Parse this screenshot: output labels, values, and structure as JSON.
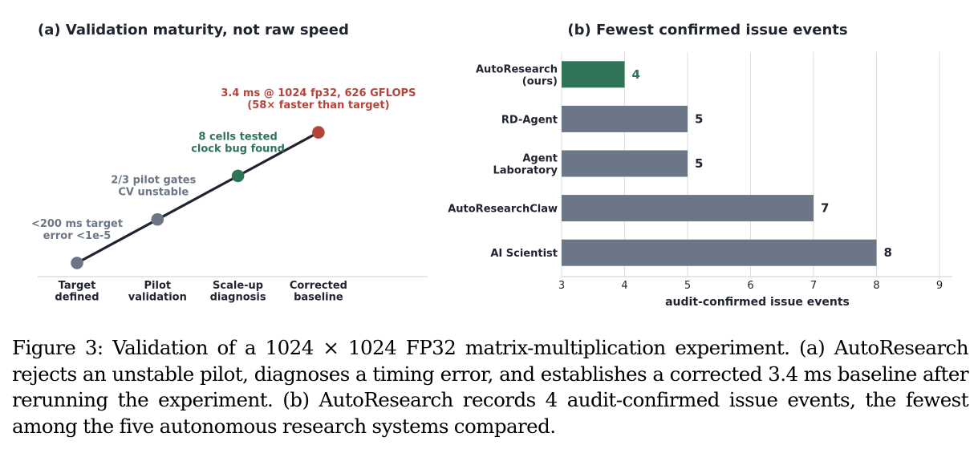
{
  "chart_data": [
    {
      "type": "line",
      "title": "(a) Validation maturity, not raw speed",
      "categories": [
        "Target\ndefined",
        "Pilot\nvalidation",
        "Scale-up\ndiagnosis",
        "Corrected\nbaseline"
      ],
      "y": [
        0,
        1,
        2,
        3
      ],
      "grid": false,
      "colors": {
        "line": "#1f2430",
        "axis": "#cccccc"
      },
      "points": [
        {
          "annotation": "<200 ms target\nerror <1e-5",
          "color": "#6b7686"
        },
        {
          "annotation": "2/3 pilot gates\nCV unstable",
          "color": "#6b7686"
        },
        {
          "annotation": "8 cells tested\nclock bug found",
          "color": "#2f7358"
        },
        {
          "annotation": "3.4 ms @ 1024 fp32, 626 GFLOPS\n(58× faster than target)",
          "color": "#b5453c"
        }
      ]
    },
    {
      "type": "bar",
      "orientation": "horizontal",
      "title": "(b) Fewest confirmed issue events",
      "categories": [
        "AutoResearch\n(ours)",
        "RD-Agent",
        "Agent\nLaboratory",
        "AutoResearchClaw",
        "AI Scientist"
      ],
      "values": [
        4,
        5,
        5,
        7,
        8
      ],
      "xlabel": "audit-confirmed issue events",
      "ylabel": "",
      "xlim": [
        3,
        9
      ],
      "xticks": [
        3,
        4,
        5,
        6,
        7,
        8,
        9
      ],
      "grid": true,
      "colors": {
        "highlight": "#2f7358",
        "default": "#6b7686",
        "grid": "#dddddd"
      },
      "highlight_index": 0
    }
  ],
  "caption": {
    "parts": [
      "Figure 3: Validation of a ",
      "1024 × 1024",
      " FP32 matrix-multiplication experiment. (a) AutoResearch rejects an unstable pilot, diagnoses a timing error, and establishes a corrected ",
      "3.4 ms",
      " baseline after rerunning the experiment. (b) AutoResearch records ",
      "4",
      " audit-confirmed issue events, the fewest among the five autonomous research systems compared."
    ]
  }
}
